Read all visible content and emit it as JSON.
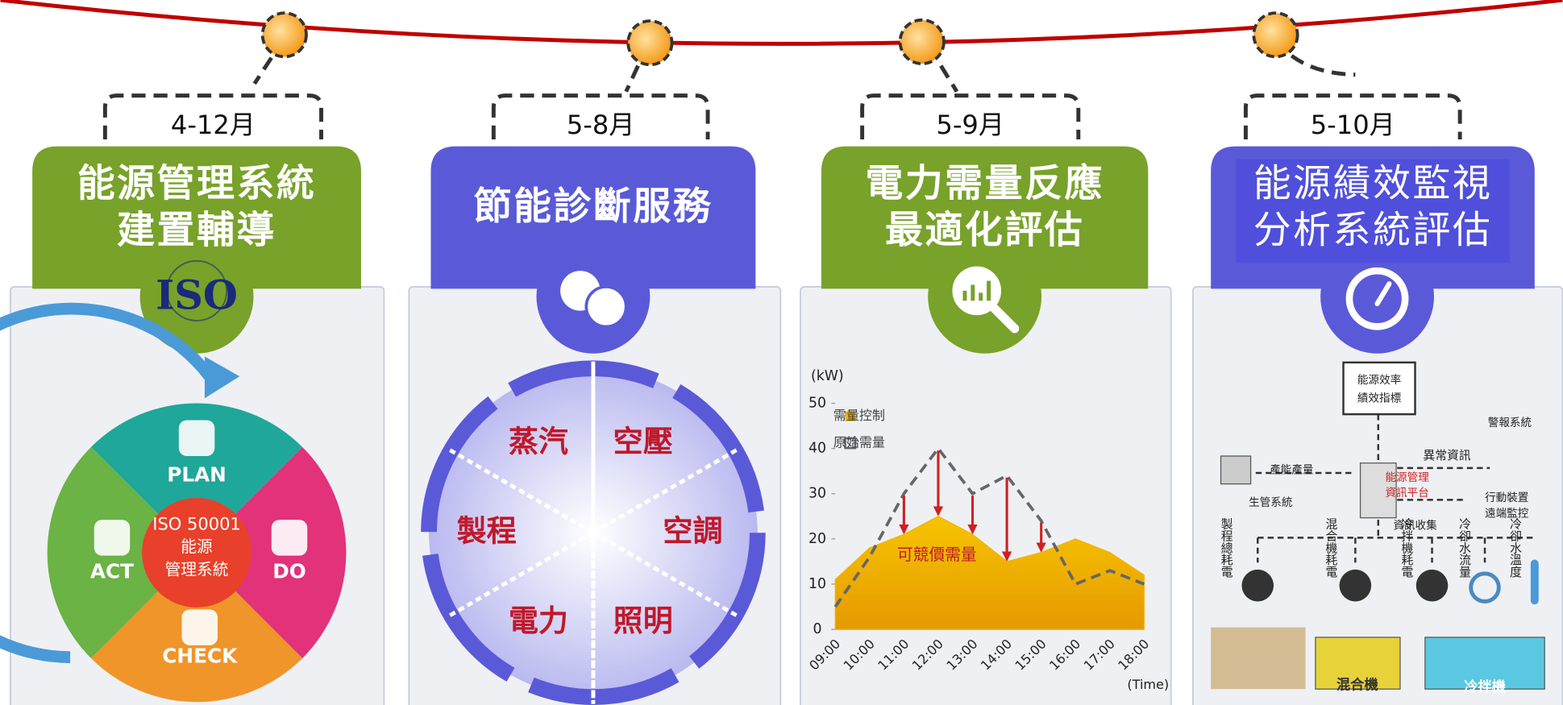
{
  "panels": [
    {
      "period": "4-12月",
      "title": [
        "能源管理系統",
        "建置輔導"
      ],
      "icon": "ISO",
      "cycle": {
        "center": [
          "ISO 50001",
          "能源",
          "管理系統"
        ],
        "steps": [
          "PLAN",
          "DO",
          "CHECK",
          "ACT"
        ]
      }
    },
    {
      "period": "5-8月",
      "title": [
        "節能診斷服務"
      ],
      "segments": [
        "蒸汽",
        "空壓",
        "空調",
        "照明",
        "電力",
        "製程"
      ]
    },
    {
      "period": "5-9月",
      "title": [
        "電力需量反應",
        "最適化評估"
      ]
    },
    {
      "period": "5-10月",
      "title": [
        "能源績效監視",
        "分析系統評估"
      ],
      "diagram": {
        "kpi": [
          "能源效率",
          "績效指標"
        ],
        "alarm": "警報系統",
        "anomaly": "異常資訊",
        "production": "產能產量",
        "platform": [
          "能源管理",
          "資訊平台"
        ],
        "mis": "生管系統",
        "mobile": [
          "行動裝置",
          "遠端監控"
        ],
        "collect": "資訊收集",
        "meters": [
          "製程總耗電",
          "混合機耗電",
          "冷拌機耗電",
          "冷卻水流量",
          "冷卻水溫度"
        ],
        "machines": [
          "混合機",
          "冷拌機"
        ]
      }
    }
  ],
  "chart_data": {
    "type": "area",
    "y_label": "(kW)",
    "x_label": "(Time)",
    "annotation": "可競價需量",
    "categories": [
      "09:00",
      "10:00",
      "11:00",
      "12:00",
      "13:00",
      "14:00",
      "15:00",
      "16:00",
      "17:00",
      "18:00"
    ],
    "series": [
      {
        "name": "需量控制",
        "color": "#f0b400",
        "values": [
          11,
          18,
          21,
          25,
          21,
          15,
          17,
          20,
          17,
          12
        ]
      },
      {
        "name": "原始需量",
        "color": "#666666",
        "dashed": true,
        "values": [
          5,
          16,
          30,
          40,
          30,
          34,
          24,
          10,
          13,
          10
        ]
      }
    ],
    "ylim": [
      0,
      50
    ],
    "yticks": [
      0,
      10,
      20,
      30,
      40,
      50
    ]
  }
}
